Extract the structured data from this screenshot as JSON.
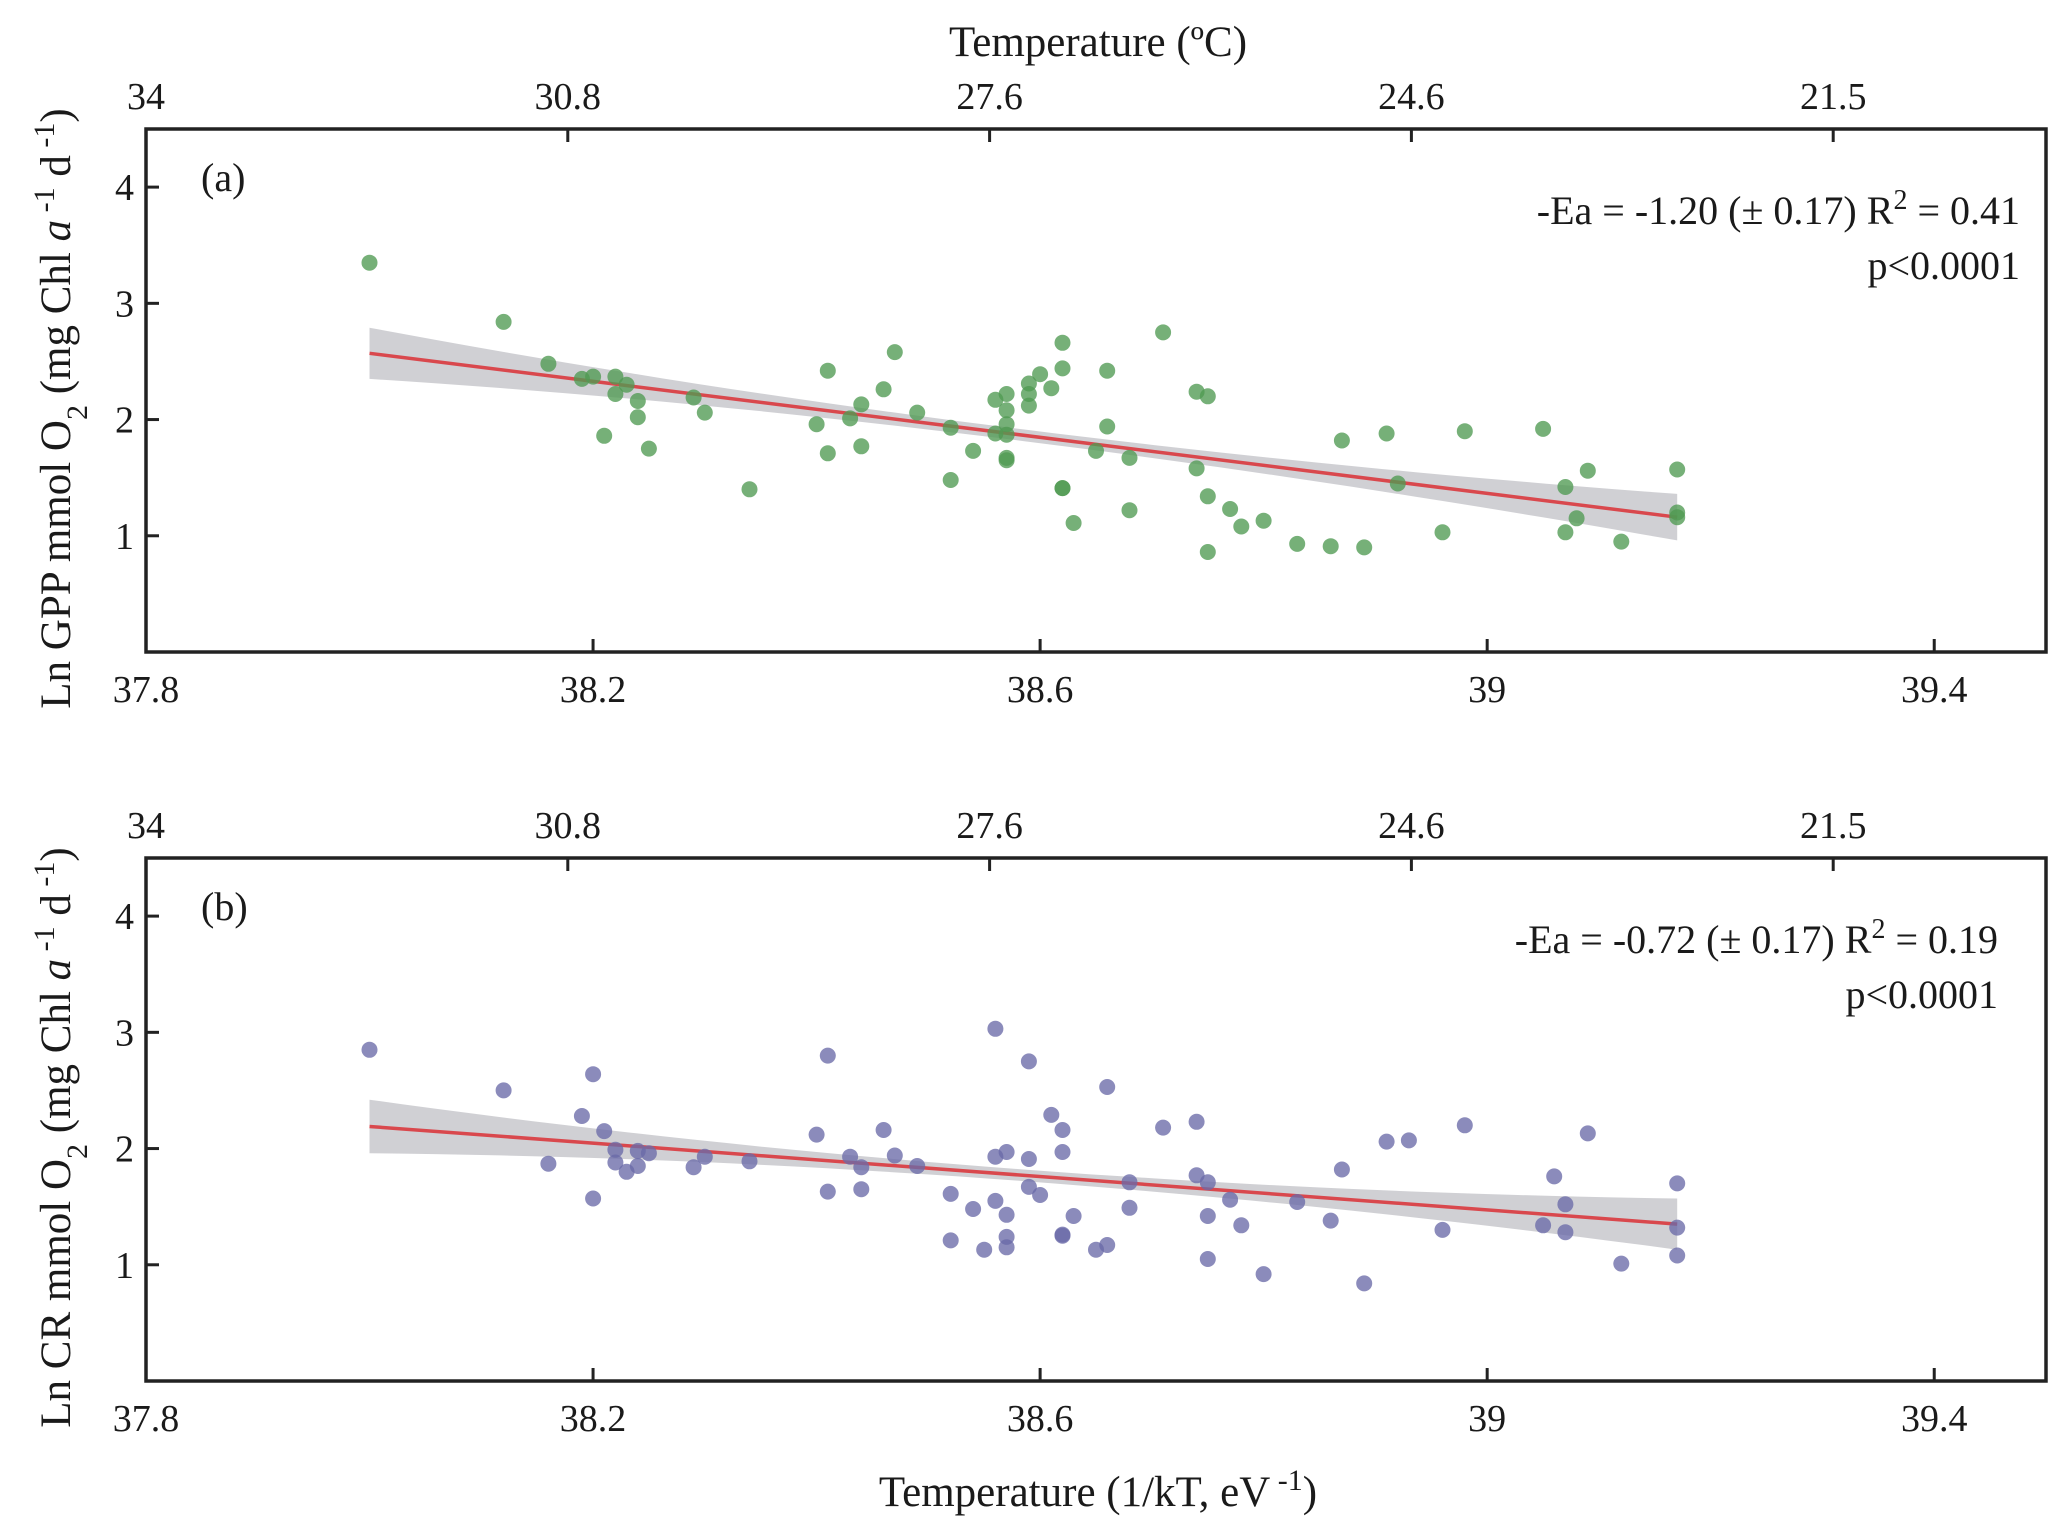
{
  "chart_data": [
    {
      "type": "scatter",
      "panel_label": "(a)",
      "xlabel": "",
      "ylabel": "Ln GPP mmol O2 (mg Chl a -1 d -1)",
      "ylabel_parts": {
        "a": "Ln GPP mmol O",
        "b": "2",
        "c": " (mg Chl ",
        "d": "a",
        "e": " -1",
        "f": " d",
        "g": " -1",
        "h": ")"
      },
      "top_xlabel": "Temperature (ºC)",
      "top_ticks": [
        "34",
        "30.8",
        "27.6",
        "24.6",
        "21.5"
      ],
      "xlim": [
        37.8,
        39.5
      ],
      "ylim": [
        0,
        4.5
      ],
      "xticks": [
        37.8,
        38.2,
        38.6,
        39.0,
        39.4
      ],
      "xtick_labels": [
        "37.8",
        "38.2",
        "38.6",
        "39",
        "39.4"
      ],
      "yticks": [
        1,
        2,
        3,
        4
      ],
      "ytick_labels": [
        "1",
        "2",
        "3",
        "4"
      ],
      "color": "#4f9a52",
      "annotation": {
        "line1_a": "-Ea = -1.20 (± 0.17) R",
        "line1_sup": "2",
        "line1_b": " = 0.41",
        "line2": "p<0.0001"
      },
      "fit": {
        "x": [
          38.0,
          39.17
        ],
        "y": [
          2.57,
          1.16
        ],
        "band_halfwidth": [
          0.22,
          0.2
        ],
        "band_mid": 0.05
      },
      "points": [
        [
          38.0,
          3.35
        ],
        [
          38.12,
          2.84
        ],
        [
          38.16,
          2.48
        ],
        [
          38.19,
          2.35
        ],
        [
          38.2,
          2.37
        ],
        [
          38.22,
          2.37
        ],
        [
          38.22,
          2.22
        ],
        [
          38.23,
          2.3
        ],
        [
          38.21,
          1.86
        ],
        [
          38.24,
          2.16
        ],
        [
          38.24,
          2.02
        ],
        [
          38.25,
          1.75
        ],
        [
          38.29,
          2.19
        ],
        [
          38.3,
          2.06
        ],
        [
          38.34,
          1.4
        ],
        [
          38.4,
          1.96
        ],
        [
          38.41,
          2.42
        ],
        [
          38.41,
          1.71
        ],
        [
          38.43,
          2.01
        ],
        [
          38.44,
          1.77
        ],
        [
          38.44,
          2.13
        ],
        [
          38.46,
          2.26
        ],
        [
          38.47,
          2.58
        ],
        [
          38.49,
          2.06
        ],
        [
          38.52,
          1.93
        ],
        [
          38.52,
          1.48
        ],
        [
          38.54,
          1.73
        ],
        [
          38.56,
          1.88
        ],
        [
          38.56,
          2.17
        ],
        [
          38.57,
          2.08
        ],
        [
          38.57,
          2.22
        ],
        [
          38.57,
          1.96
        ],
        [
          38.57,
          1.87
        ],
        [
          38.57,
          1.65
        ],
        [
          38.57,
          1.67
        ],
        [
          38.59,
          2.31
        ],
        [
          38.59,
          2.22
        ],
        [
          38.59,
          2.12
        ],
        [
          38.6,
          2.39
        ],
        [
          38.61,
          2.27
        ],
        [
          38.62,
          2.66
        ],
        [
          38.62,
          2.44
        ],
        [
          38.62,
          1.41
        ],
        [
          38.62,
          1.41
        ],
        [
          38.63,
          1.11
        ],
        [
          38.65,
          1.73
        ],
        [
          38.66,
          1.94
        ],
        [
          38.66,
          2.42
        ],
        [
          38.68,
          1.22
        ],
        [
          38.68,
          1.67
        ],
        [
          38.71,
          2.75
        ],
        [
          38.74,
          2.24
        ],
        [
          38.74,
          1.58
        ],
        [
          38.75,
          2.2
        ],
        [
          38.75,
          1.34
        ],
        [
          38.75,
          0.86
        ],
        [
          38.77,
          1.23
        ],
        [
          38.78,
          1.08
        ],
        [
          38.8,
          1.13
        ],
        [
          38.83,
          0.93
        ],
        [
          38.86,
          0.91
        ],
        [
          38.87,
          1.82
        ],
        [
          38.89,
          0.9
        ],
        [
          38.91,
          1.88
        ],
        [
          38.92,
          1.45
        ],
        [
          38.96,
          1.03
        ],
        [
          38.98,
          1.9
        ],
        [
          39.05,
          1.92
        ],
        [
          39.07,
          1.42
        ],
        [
          39.07,
          1.03
        ],
        [
          39.08,
          1.15
        ],
        [
          39.09,
          1.56
        ],
        [
          39.12,
          0.95
        ],
        [
          39.17,
          1.57
        ],
        [
          39.17,
          1.2
        ],
        [
          39.17,
          1.16
        ]
      ]
    },
    {
      "type": "scatter",
      "panel_label": "(b)",
      "xlabel": "Temperature (1/kT, eV -1)",
      "xlabel_parts": {
        "a": "Temperature (1/kT, eV",
        "b": " -1",
        "c": ")"
      },
      "ylabel": "Ln CR mmol O2 (mg Chl a -1 d -1)",
      "ylabel_parts": {
        "a": "Ln CR mmol O",
        "b": "2",
        "c": " (mg Chl ",
        "d": "a",
        "e": " -1",
        "f": " d",
        "g": " -1",
        "h": ")"
      },
      "top_xlabel": "",
      "top_ticks": [
        "34",
        "30.8",
        "27.6",
        "24.6",
        "21.5"
      ],
      "xlim": [
        37.8,
        39.5
      ],
      "ylim": [
        0,
        4.5
      ],
      "xticks": [
        37.8,
        38.2,
        38.6,
        39.0,
        39.4
      ],
      "xtick_labels": [
        "37.8",
        "38.2",
        "38.6",
        "39",
        "39.4"
      ],
      "yticks": [
        1,
        2,
        3,
        4
      ],
      "ytick_labels": [
        "1",
        "2",
        "3",
        "4"
      ],
      "color": "#6a6aa8",
      "annotation": {
        "line1_a": "-Ea = -0.72 (± 0.17) R",
        "line1_sup": "2",
        "line1_b": " = 0.19",
        "line2": "p<0.0001"
      },
      "fit": {
        "x": [
          38.0,
          39.17
        ],
        "y": [
          2.19,
          1.35
        ],
        "band_halfwidth": [
          0.23,
          0.22
        ],
        "band_mid": 0.05
      },
      "points": [
        [
          38.0,
          2.85
        ],
        [
          38.12,
          2.5
        ],
        [
          38.16,
          1.87
        ],
        [
          38.19,
          2.28
        ],
        [
          38.2,
          2.64
        ],
        [
          38.2,
          1.57
        ],
        [
          38.21,
          2.15
        ],
        [
          38.22,
          1.99
        ],
        [
          38.22,
          1.88
        ],
        [
          38.23,
          1.8
        ],
        [
          38.24,
          1.98
        ],
        [
          38.24,
          1.85
        ],
        [
          38.25,
          1.96
        ],
        [
          38.29,
          1.84
        ],
        [
          38.3,
          1.93
        ],
        [
          38.34,
          1.89
        ],
        [
          38.4,
          2.12
        ],
        [
          38.41,
          2.8
        ],
        [
          38.41,
          1.63
        ],
        [
          38.43,
          1.93
        ],
        [
          38.44,
          1.65
        ],
        [
          38.44,
          1.84
        ],
        [
          38.46,
          2.16
        ],
        [
          38.47,
          1.94
        ],
        [
          38.49,
          1.85
        ],
        [
          38.52,
          1.61
        ],
        [
          38.52,
          1.21
        ],
        [
          38.54,
          1.48
        ],
        [
          38.55,
          1.13
        ],
        [
          38.56,
          3.03
        ],
        [
          38.56,
          1.93
        ],
        [
          38.56,
          1.55
        ],
        [
          38.57,
          1.97
        ],
        [
          38.57,
          1.43
        ],
        [
          38.57,
          1.24
        ],
        [
          38.57,
          1.15
        ],
        [
          38.59,
          2.75
        ],
        [
          38.59,
          1.67
        ],
        [
          38.59,
          1.91
        ],
        [
          38.6,
          1.6
        ],
        [
          38.61,
          2.29
        ],
        [
          38.62,
          2.16
        ],
        [
          38.62,
          1.97
        ],
        [
          38.62,
          1.26
        ],
        [
          38.62,
          1.25
        ],
        [
          38.63,
          1.42
        ],
        [
          38.65,
          1.13
        ],
        [
          38.66,
          1.17
        ],
        [
          38.66,
          2.53
        ],
        [
          38.68,
          1.71
        ],
        [
          38.68,
          1.49
        ],
        [
          38.71,
          2.18
        ],
        [
          38.74,
          2.23
        ],
        [
          38.74,
          1.77
        ],
        [
          38.75,
          1.71
        ],
        [
          38.75,
          1.42
        ],
        [
          38.75,
          1.05
        ],
        [
          38.78,
          1.34
        ],
        [
          38.77,
          1.56
        ],
        [
          38.8,
          0.92
        ],
        [
          38.83,
          1.54
        ],
        [
          38.86,
          1.38
        ],
        [
          38.87,
          1.82
        ],
        [
          38.89,
          0.84
        ],
        [
          38.91,
          2.06
        ],
        [
          38.93,
          2.07
        ],
        [
          38.96,
          1.3
        ],
        [
          38.98,
          2.2
        ],
        [
          39.05,
          1.34
        ],
        [
          39.06,
          1.76
        ],
        [
          39.07,
          1.52
        ],
        [
          39.07,
          1.28
        ],
        [
          39.09,
          2.13
        ],
        [
          39.12,
          1.01
        ],
        [
          39.17,
          1.7
        ],
        [
          39.17,
          1.08
        ],
        [
          39.17,
          1.32
        ]
      ]
    }
  ]
}
